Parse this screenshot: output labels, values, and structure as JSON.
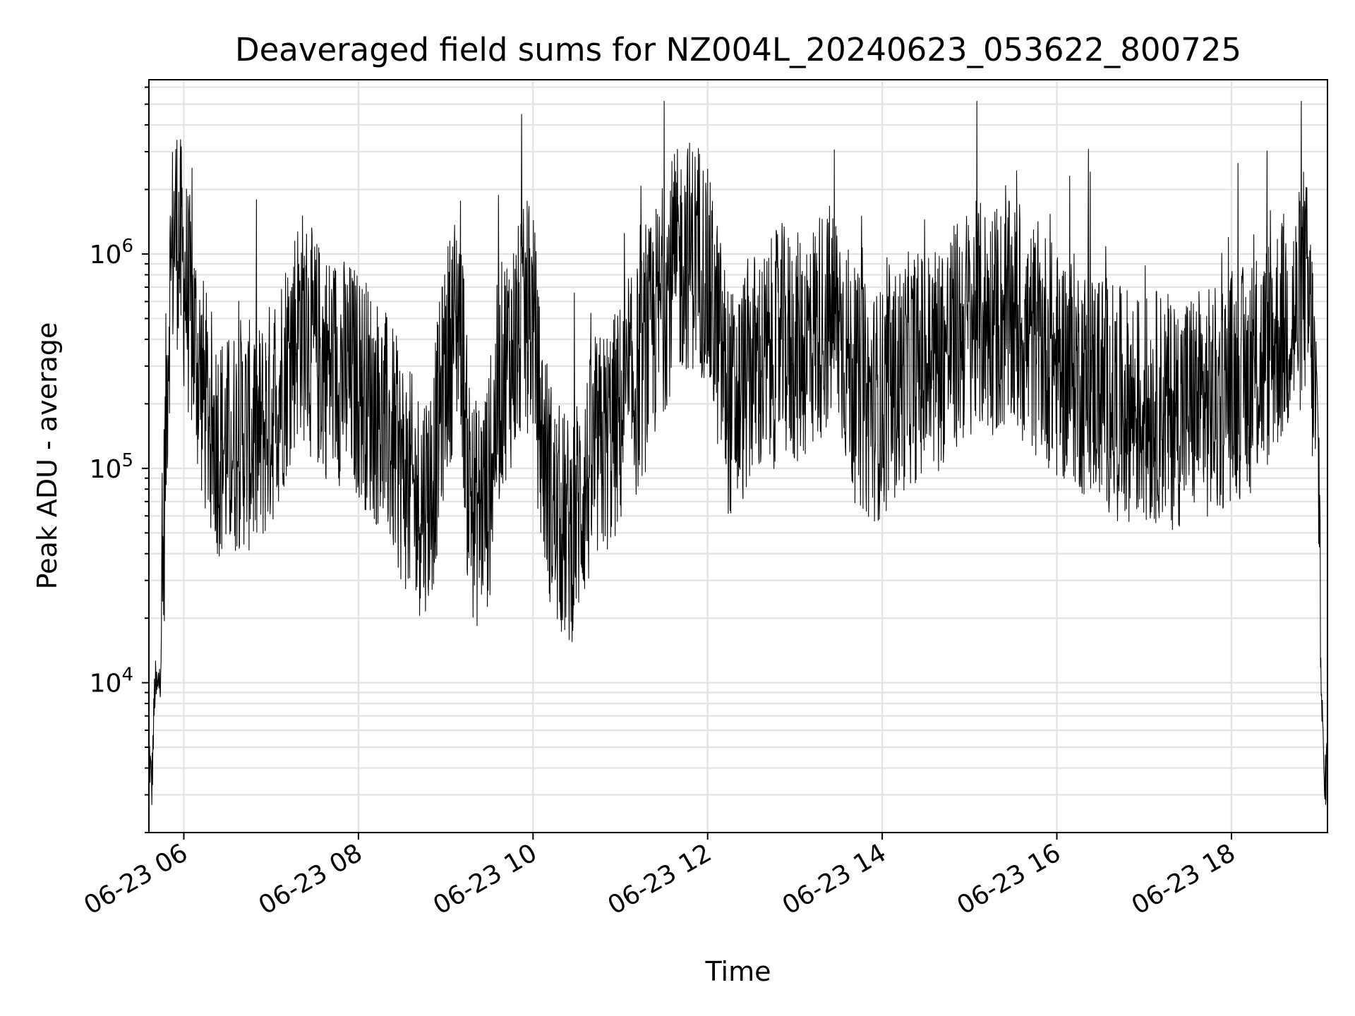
{
  "chart_data": {
    "type": "line",
    "title": "Deaveraged field sums for NZ004L_20240623_053622_800725",
    "xlabel": "Time",
    "ylabel": "Peak ADU - average",
    "y_scale": "log",
    "ylim": [
      2000,
      6500000
    ],
    "xlim": [
      "06-23 05:36",
      "06-23 19:06"
    ],
    "x_ticks": [
      "06-23 06",
      "06-23 08",
      "06-23 10",
      "06-23 12",
      "06-23 14",
      "06-23 16",
      "06-23 18"
    ],
    "y_ticks": [
      {
        "value": 10000,
        "base": "10",
        "exp": "4"
      },
      {
        "value": 100000,
        "base": "10",
        "exp": "5"
      },
      {
        "value": 1000000,
        "base": "10",
        "exp": "6"
      }
    ],
    "grid": true,
    "line_color": "#000000",
    "series": [
      {
        "x": [
          "06-23 05:36",
          "06-23 05:38",
          "06-23 05:40",
          "06-23 05:42",
          "06-23 05:44",
          "06-23 05:46",
          "06-23 05:48",
          "06-23 05:50",
          "06-23 05:52",
          "06-23 05:54",
          "06-23 05:56",
          "06-23 06:00",
          "06-23 06:05",
          "06-23 06:10",
          "06-23 06:15",
          "06-23 06:20",
          "06-23 06:25",
          "06-23 06:30",
          "06-23 06:40",
          "06-23 06:50",
          "06-23 07:00",
          "06-23 07:10",
          "06-23 07:15",
          "06-23 07:20",
          "06-23 07:30",
          "06-23 07:40",
          "06-23 07:45",
          "06-23 07:50",
          "06-23 08:00",
          "06-23 08:10",
          "06-23 08:20",
          "06-23 08:30",
          "06-23 08:40",
          "06-23 08:50",
          "06-23 09:00",
          "06-23 09:10",
          "06-23 09:15",
          "06-23 09:20",
          "06-23 09:30",
          "06-23 09:35",
          "06-23 09:40",
          "06-23 09:50",
          "06-23 09:55",
          "06-23 10:00",
          "06-23 10:05",
          "06-23 10:15",
          "06-23 10:25",
          "06-23 10:35",
          "06-23 10:45",
          "06-23 10:55",
          "06-23 11:05",
          "06-23 11:15",
          "06-23 11:25",
          "06-23 11:35",
          "06-23 11:45",
          "06-23 11:55",
          "06-23 12:05",
          "06-23 12:15",
          "06-23 12:20",
          "06-23 12:30",
          "06-23 12:40",
          "06-23 12:50",
          "06-23 13:00",
          "06-23 13:10",
          "06-23 13:20",
          "06-23 13:30",
          "06-23 13:40",
          "06-23 13:50",
          "06-23 14:00",
          "06-23 14:10",
          "06-23 14:20",
          "06-23 14:30",
          "06-23 14:40",
          "06-23 14:50",
          "06-23 15:00",
          "06-23 15:10",
          "06-23 15:20",
          "06-23 15:30",
          "06-23 15:40",
          "06-23 15:50",
          "06-23 16:00",
          "06-23 16:10",
          "06-23 16:20",
          "06-23 16:30",
          "06-23 16:40",
          "06-23 16:50",
          "06-23 17:00",
          "06-23 17:10",
          "06-23 17:20",
          "06-23 17:30",
          "06-23 17:40",
          "06-23 17:50",
          "06-23 18:00",
          "06-23 18:10",
          "06-23 18:20",
          "06-23 18:30",
          "06-23 18:40",
          "06-23 18:45",
          "06-23 18:50",
          "06-23 18:55",
          "06-23 19:00",
          "06-23 19:02",
          "06-23 19:04",
          "06-23 19:06"
        ],
        "y": [
          5000,
          3200,
          9500,
          9000,
          12000,
          40000,
          200000,
          600000,
          1000000,
          1400000,
          1200000,
          800000,
          500000,
          300000,
          200000,
          150000,
          130000,
          120000,
          150000,
          130000,
          180000,
          300000,
          400000,
          500000,
          350000,
          300000,
          300000,
          280000,
          250000,
          200000,
          150000,
          100000,
          70000,
          80000,
          300000,
          600000,
          100000,
          60000,
          80000,
          200000,
          300000,
          400000,
          500000,
          500000,
          150000,
          60000,
          50000,
          80000,
          120000,
          150000,
          200000,
          300000,
          500000,
          800000,
          1000000,
          1000000,
          500000,
          200000,
          200000,
          300000,
          300000,
          400000,
          350000,
          400000,
          500000,
          500000,
          250000,
          200000,
          200000,
          250000,
          300000,
          300000,
          350000,
          400000,
          500000,
          500000,
          500000,
          500000,
          400000,
          400000,
          300000,
          300000,
          250000,
          250000,
          200000,
          200000,
          180000,
          200000,
          180000,
          200000,
          200000,
          200000,
          250000,
          250000,
          300000,
          400000,
          500000,
          500000,
          800000,
          400000,
          100000,
          8000,
          3000,
          5000
        ],
        "noise_amplitude_decades": 0.55
      }
    ]
  }
}
